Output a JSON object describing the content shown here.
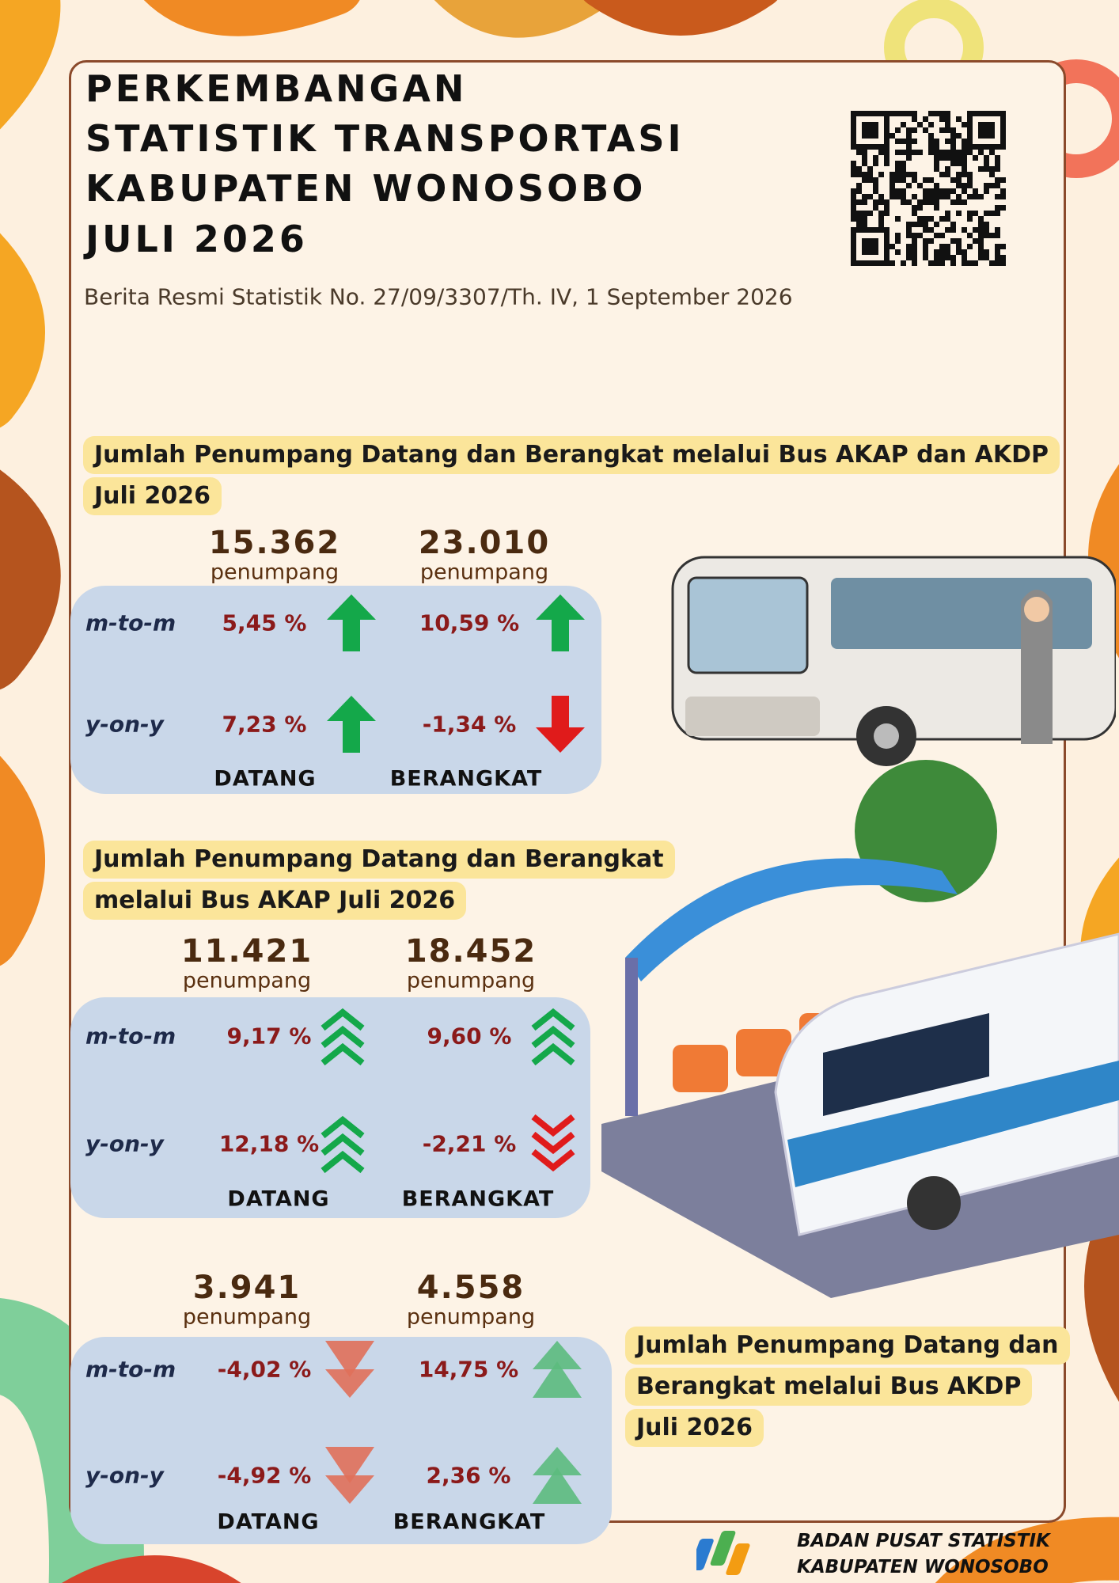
{
  "header": {
    "title": [
      "PERKEMBANGAN",
      "STATISTIK TRANSPORTASI",
      "KABUPATEN WONOSOBO",
      "JULI 2026"
    ],
    "subtitle": "Berita Resmi Statistik No. 27/09/3307/Th. IV, 1 September 2026"
  },
  "sections": [
    {
      "heading": [
        "Jumlah Penumpang Datang dan Berangkat melalui Bus AKAP dan AKDP",
        "Juli 2026"
      ],
      "row_labels": [
        "m-to-m",
        "y-on-y"
      ],
      "column_labels": [
        "DATANG",
        "BERANGKAT"
      ],
      "datang": {
        "total": "15.362",
        "unit": "penumpang",
        "m_to_m": "5,45 %",
        "y_on_y": "7,23 %"
      },
      "berangkat": {
        "total": "23.010",
        "unit": "penumpang",
        "m_to_m": "10,59 %",
        "y_on_y": "-1,34 %"
      }
    },
    {
      "heading": [
        "Jumlah Penumpang Datang dan Berangkat",
        "melalui Bus AKAP Juli 2026"
      ],
      "row_labels": [
        "m-to-m",
        "y-on-y"
      ],
      "column_labels": [
        "DATANG",
        "BERANGKAT"
      ],
      "datang": {
        "total": "11.421",
        "unit": "penumpang",
        "m_to_m": "9,17 %",
        "y_on_y": "12,18 %"
      },
      "berangkat": {
        "total": "18.452",
        "unit": "penumpang",
        "m_to_m": "9,60 %",
        "y_on_y": "-2,21 %"
      }
    },
    {
      "heading": [
        "Jumlah Penumpang Datang dan",
        "Berangkat melalui Bus AKDP",
        "Juli 2026"
      ],
      "row_labels": [
        "m-to-m",
        "y-on-y"
      ],
      "column_labels": [
        "DATANG",
        "BERANGKAT"
      ],
      "datang": {
        "total": "3.941",
        "unit": "penumpang",
        "m_to_m": "-4,02 %",
        "y_on_y": "-4,92 %"
      },
      "berangkat": {
        "total": "4.558",
        "unit": "penumpang",
        "m_to_m": "14,75 %",
        "y_on_y": "2,36 %"
      }
    }
  ],
  "footer": [
    "BADAN PUSAT STATISTIK",
    "KABUPATEN WONOSOBO"
  ]
}
